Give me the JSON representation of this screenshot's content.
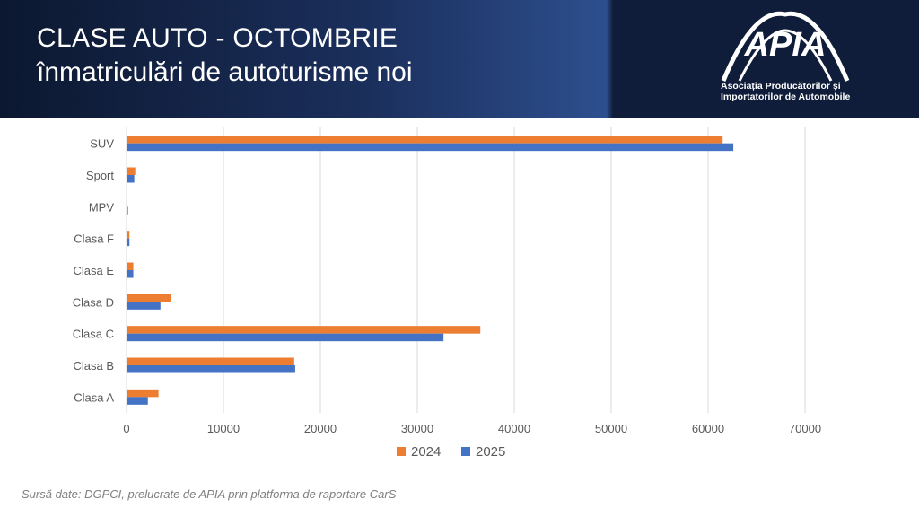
{
  "header": {
    "title": "CLASE AUTO - OCTOMBRIE",
    "subtitle": "înmatriculări de autoturisme noi",
    "logo_text": "APIA",
    "logo_line1": "Asociația Producătorilor și",
    "logo_line2": "Importatorilor de Automobile"
  },
  "source": "Sursă date: DGPCI, prelucrate de APIA prin platforma de raportare CarS",
  "colors": {
    "series_2024": "#ED7D31",
    "series_2025": "#4472C4",
    "grid": "#D9D9D9"
  },
  "chart_data": {
    "type": "bar",
    "orientation": "horizontal",
    "categories": [
      "SUV",
      "Sport",
      "MPV",
      "Clasa F",
      "Clasa E",
      "Clasa D",
      "Clasa C",
      "Clasa B",
      "Clasa A"
    ],
    "series": [
      {
        "name": "2024",
        "values": [
          61500,
          900,
          0,
          300,
          700,
          4600,
          36500,
          17300,
          3300
        ]
      },
      {
        "name": "2025",
        "values": [
          62600,
          800,
          150,
          300,
          700,
          3500,
          32700,
          17400,
          2200
        ]
      }
    ],
    "xlim": [
      0,
      70000
    ],
    "xticks": [
      0,
      10000,
      20000,
      30000,
      40000,
      50000,
      60000,
      70000
    ],
    "grid": true,
    "legend": "bottom"
  }
}
